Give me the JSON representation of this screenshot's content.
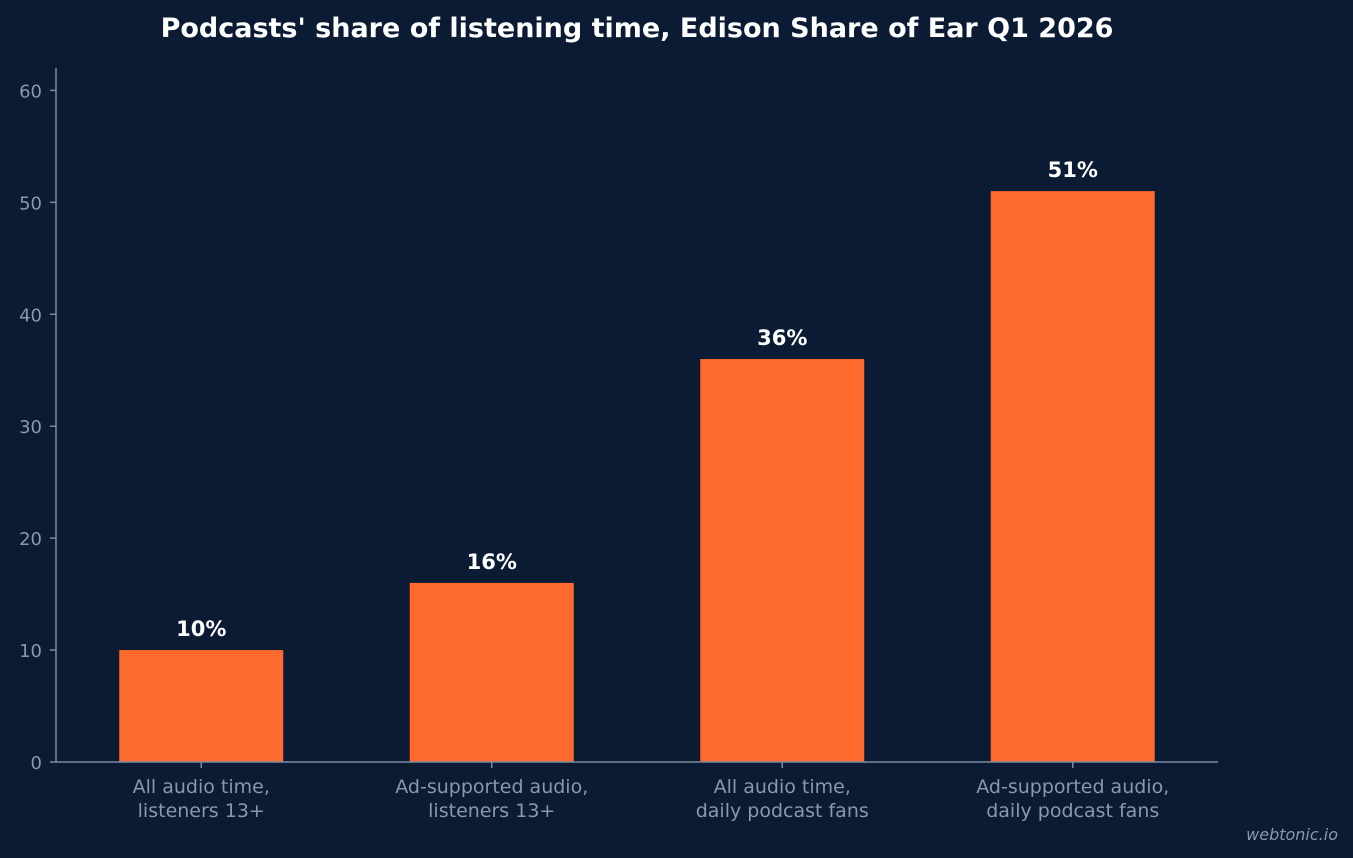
{
  "colors": {
    "background": "#0b1b33",
    "bar": "#ff6a2e",
    "axis": "#7d8aa1",
    "text": "#ffffff",
    "muted_text": "#8a97ad"
  },
  "watermark": "webtonic.io",
  "chart_data": {
    "type": "bar",
    "title": "Podcasts' share of listening time, Edison Share of Ear Q1 2026",
    "xlabel": "",
    "ylabel": "",
    "ylim": [
      0,
      62
    ],
    "yticks": [
      0,
      10,
      20,
      30,
      40,
      50,
      60
    ],
    "grid": false,
    "categories": [
      [
        "All audio time,",
        "listeners 13+"
      ],
      [
        "Ad-supported audio,",
        "listeners 13+"
      ],
      [
        "All audio time,",
        "daily podcast fans"
      ],
      [
        "Ad-supported audio,",
        "daily podcast fans"
      ]
    ],
    "values": [
      10,
      16,
      36,
      51
    ],
    "data_labels": [
      "10%",
      "16%",
      "36%",
      "51%"
    ]
  }
}
